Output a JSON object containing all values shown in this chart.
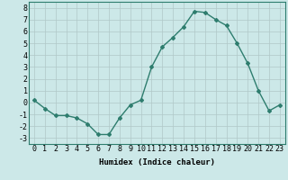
{
  "x": [
    0,
    1,
    2,
    3,
    4,
    5,
    6,
    7,
    8,
    9,
    10,
    11,
    12,
    13,
    14,
    15,
    16,
    17,
    18,
    19,
    20,
    21,
    22,
    23
  ],
  "y": [
    0.2,
    -0.5,
    -1.1,
    -1.1,
    -1.3,
    -1.8,
    -2.7,
    -2.7,
    -1.3,
    -0.2,
    0.2,
    3.0,
    4.7,
    5.5,
    6.4,
    7.7,
    7.6,
    7.0,
    6.5,
    5.0,
    3.3,
    1.0,
    -0.7,
    -0.2
  ],
  "line_color": "#2e7d6e",
  "marker": "D",
  "markersize": 2.0,
  "linewidth": 1.0,
  "xlabel": "Humidex (Indice chaleur)",
  "ylabel": "",
  "ylim": [
    -3.5,
    8.5
  ],
  "xlim": [
    -0.5,
    23.5
  ],
  "yticks": [
    -3,
    -2,
    -1,
    0,
    1,
    2,
    3,
    4,
    5,
    6,
    7,
    8
  ],
  "xticks": [
    0,
    1,
    2,
    3,
    4,
    5,
    6,
    7,
    8,
    9,
    10,
    11,
    12,
    13,
    14,
    15,
    16,
    17,
    18,
    19,
    20,
    21,
    22,
    23
  ],
  "bg_color": "#cce8e8",
  "grid_color": "#b0c8c8",
  "xlabel_fontsize": 6.5,
  "tick_fontsize": 6.0
}
